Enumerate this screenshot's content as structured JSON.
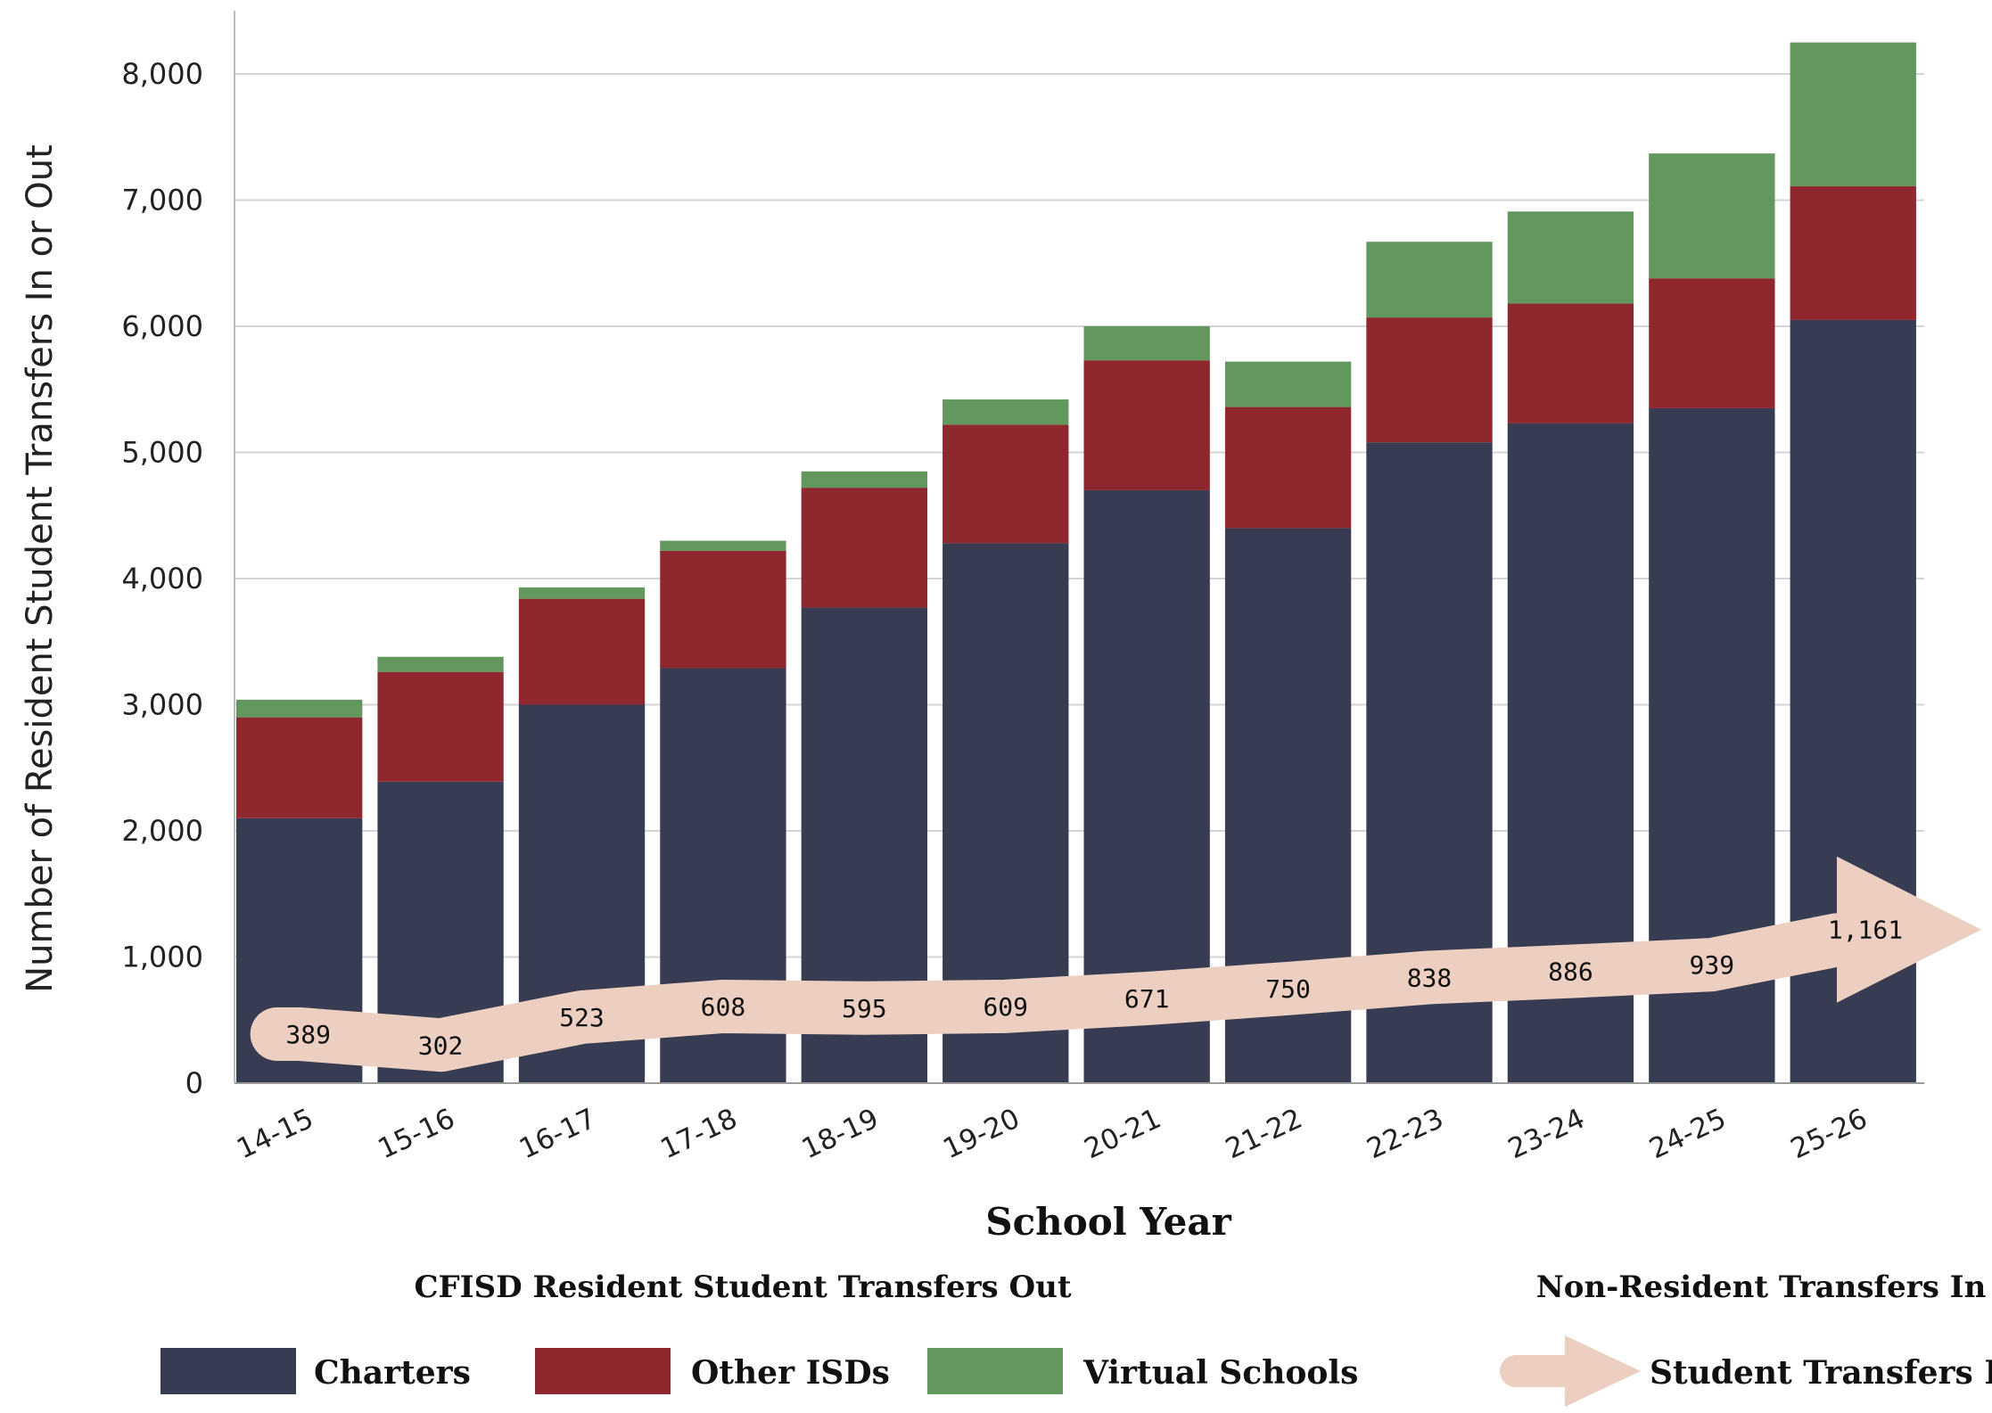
{
  "chart_data": {
    "type": "bar",
    "stacked": true,
    "xlabel": "School Year",
    "ylabel": "Number of Resident Student Transfers In or Out",
    "ylim": [
      0,
      8200
    ],
    "yticks": [
      0,
      1000,
      2000,
      3000,
      4000,
      5000,
      6000,
      7000,
      8000
    ],
    "ytick_labels": [
      "0",
      "1,000",
      "2,000",
      "3,000",
      "4,000",
      "5,000",
      "6,000",
      "7,000",
      "8,000"
    ],
    "grid": "horizontal",
    "categories": [
      "14-15",
      "15-16",
      "16-17",
      "17-18",
      "18-19",
      "19-20",
      "20-21",
      "21-22",
      "22-23",
      "23-24",
      "24-25",
      "25-26"
    ],
    "series": [
      {
        "name": "Charters",
        "color": "#373c52",
        "values": [
          2100,
          2390,
          3000,
          3290,
          3770,
          4280,
          4700,
          4400,
          5080,
          5230,
          5350,
          6050
        ]
      },
      {
        "name": "Other ISDs",
        "color": "#8e272e",
        "values": [
          800,
          870,
          840,
          930,
          950,
          940,
          1030,
          960,
          990,
          950,
          1030,
          1060
        ]
      },
      {
        "name": "Virtual Schools",
        "color": "#62975d",
        "values": [
          140,
          120,
          90,
          80,
          130,
          200,
          270,
          360,
          600,
          730,
          990,
          1140
        ]
      }
    ],
    "transfers_in": {
      "name": "Student Transfers In",
      "color": "#eccfc0",
      "values": [
        389,
        302,
        523,
        608,
        595,
        609,
        671,
        750,
        838,
        886,
        939,
        1161
      ],
      "labels": [
        "389",
        "302",
        "523",
        "608",
        "595",
        "609",
        "671",
        "750",
        "838",
        "886",
        "939",
        "1,161"
      ]
    },
    "legend": {
      "placement": "bottom",
      "out_heading": "CFISD Resident Student Transfers Out",
      "in_heading": "Non-Resident Transfers In",
      "items": [
        "Charters",
        "Other ISDs",
        "Virtual Schools"
      ],
      "in_item": "Student Transfers In"
    }
  }
}
